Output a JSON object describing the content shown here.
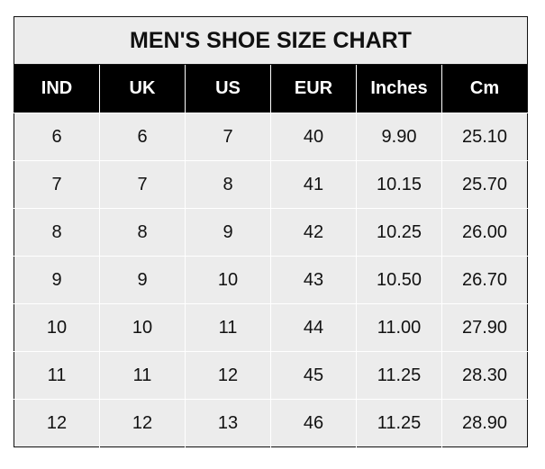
{
  "title": "MEN'S SHOE SIZE CHART",
  "columns": [
    "IND",
    "UK",
    "US",
    "EUR",
    "Inches",
    "Cm"
  ],
  "rows": [
    [
      "6",
      "6",
      "7",
      "40",
      "9.90",
      "25.10"
    ],
    [
      "7",
      "7",
      "8",
      "41",
      "10.15",
      "25.70"
    ],
    [
      "8",
      "8",
      "9",
      "42",
      "10.25",
      "26.00"
    ],
    [
      "9",
      "9",
      "10",
      "43",
      "10.50",
      "26.70"
    ],
    [
      "10",
      "10",
      "11",
      "44",
      "11.00",
      "27.90"
    ],
    [
      "11",
      "11",
      "12",
      "45",
      "11.25",
      "28.30"
    ],
    [
      "12",
      "12",
      "13",
      "46",
      "11.25",
      "28.90"
    ]
  ],
  "colors": {
    "header_bg": "#000000",
    "header_text": "#ffffff",
    "cell_bg": "#ececec"
  }
}
